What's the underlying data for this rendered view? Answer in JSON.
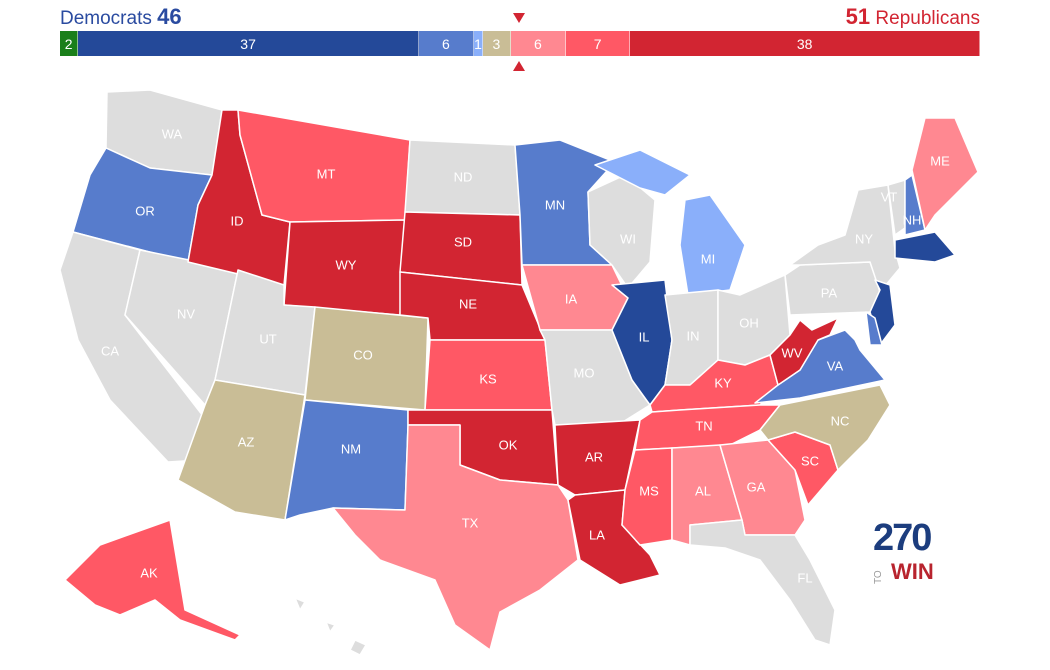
{
  "header": {
    "dem_label": "Democrats",
    "dem_total": "46",
    "rep_total": "51",
    "rep_label": "Republicans"
  },
  "colors": {
    "independent": "#1a7f1a",
    "safe_d": "#244999",
    "likely_d": "#577ccc",
    "lean_d": "#8aaffa",
    "tossup": "#c9bd96",
    "lean_r": "#ff8891",
    "likely_r": "#ff5865",
    "safe_r": "#d22532",
    "no_race": "#dddddd"
  },
  "bar": [
    {
      "label": "2",
      "value": 2,
      "rating": "independent"
    },
    {
      "label": "37",
      "value": 37,
      "rating": "safe_d"
    },
    {
      "label": "6",
      "value": 6,
      "rating": "likely_d"
    },
    {
      "label": "1",
      "value": 1,
      "rating": "lean_d"
    },
    {
      "label": "3",
      "value": 3,
      "rating": "tossup"
    },
    {
      "label": "6",
      "value": 6,
      "rating": "lean_r"
    },
    {
      "label": "7",
      "value": 7,
      "rating": "likely_r"
    },
    {
      "label": "38",
      "value": 38,
      "rating": "safe_r"
    }
  ],
  "states": [
    {
      "abbr": "WA",
      "rating": "no_race"
    },
    {
      "abbr": "OR",
      "rating": "likely_d"
    },
    {
      "abbr": "CA",
      "rating": "no_race"
    },
    {
      "abbr": "NV",
      "rating": "no_race"
    },
    {
      "abbr": "ID",
      "rating": "safe_r"
    },
    {
      "abbr": "MT",
      "rating": "likely_r"
    },
    {
      "abbr": "WY",
      "rating": "safe_r"
    },
    {
      "abbr": "UT",
      "rating": "no_race"
    },
    {
      "abbr": "AZ",
      "rating": "tossup"
    },
    {
      "abbr": "CO",
      "rating": "tossup"
    },
    {
      "abbr": "NM",
      "rating": "likely_d"
    },
    {
      "abbr": "ND",
      "rating": "no_race"
    },
    {
      "abbr": "SD",
      "rating": "safe_r"
    },
    {
      "abbr": "NE",
      "rating": "safe_r"
    },
    {
      "abbr": "KS",
      "rating": "likely_r"
    },
    {
      "abbr": "OK",
      "rating": "safe_r"
    },
    {
      "abbr": "TX",
      "rating": "lean_r"
    },
    {
      "abbr": "MN",
      "rating": "likely_d"
    },
    {
      "abbr": "IA",
      "rating": "lean_r"
    },
    {
      "abbr": "MO",
      "rating": "no_race"
    },
    {
      "abbr": "AR",
      "rating": "safe_r"
    },
    {
      "abbr": "LA",
      "rating": "safe_r"
    },
    {
      "abbr": "WI",
      "rating": "no_race"
    },
    {
      "abbr": "IL",
      "rating": "safe_d"
    },
    {
      "abbr": "MI",
      "rating": "lean_d"
    },
    {
      "abbr": "IN",
      "rating": "no_race"
    },
    {
      "abbr": "OH",
      "rating": "no_race"
    },
    {
      "abbr": "KY",
      "rating": "likely_r"
    },
    {
      "abbr": "TN",
      "rating": "likely_r"
    },
    {
      "abbr": "MS",
      "rating": "likely_r"
    },
    {
      "abbr": "AL",
      "rating": "lean_r"
    },
    {
      "abbr": "GA",
      "rating": "lean_r"
    },
    {
      "abbr": "FL",
      "rating": "no_race"
    },
    {
      "abbr": "SC",
      "rating": "likely_r"
    },
    {
      "abbr": "NC",
      "rating": "tossup"
    },
    {
      "abbr": "VA",
      "rating": "likely_d"
    },
    {
      "abbr": "WV",
      "rating": "safe_r"
    },
    {
      "abbr": "PA",
      "rating": "no_race"
    },
    {
      "abbr": "NY",
      "rating": "no_race"
    },
    {
      "abbr": "VT",
      "rating": "no_race"
    },
    {
      "abbr": "NH",
      "rating": "likely_d"
    },
    {
      "abbr": "ME",
      "rating": "lean_r"
    },
    {
      "abbr": "MA",
      "rating": "safe_d"
    },
    {
      "abbr": "NJ",
      "rating": "safe_d"
    },
    {
      "abbr": "DE",
      "rating": "likely_d"
    },
    {
      "abbr": "AK",
      "rating": "likely_r"
    },
    {
      "abbr": "HI",
      "rating": "no_race"
    }
  ],
  "logo": {
    "number": "270",
    "to": "TO",
    "win": "WIN"
  }
}
